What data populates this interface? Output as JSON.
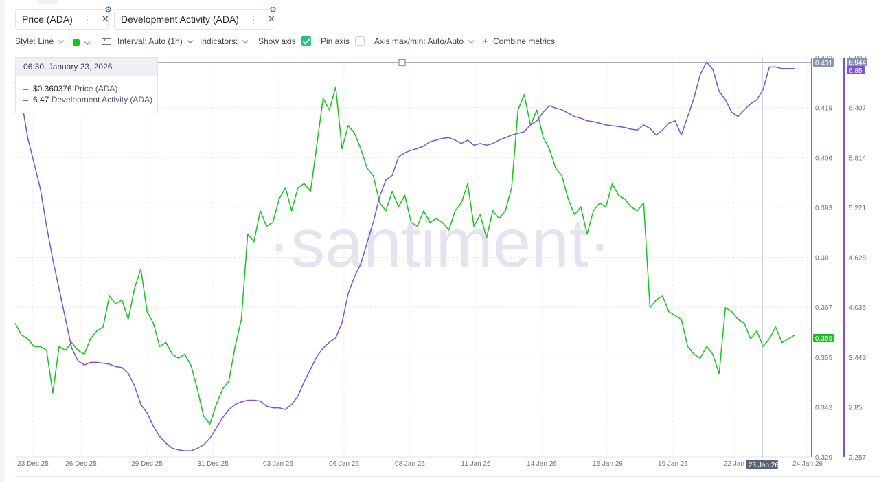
{
  "metrics": [
    {
      "label": "Price (ADA)",
      "color": "#14c31c"
    },
    {
      "label": "Development Activity (ADA)",
      "color": "#7b4fe0"
    }
  ],
  "toolbar": {
    "style": "Style: Line",
    "interval": "Interval: Auto (1h)",
    "indicators": "Indicators:",
    "show_axis": "Show axis",
    "pin_axis": "Pin axis",
    "axis_maxmin": "Axis max/min: Auto/Auto",
    "combine": "Combine metrics",
    "plus": "+"
  },
  "tooltip": {
    "date": "06:30, January 23, 2026",
    "price_value": "$0.360376",
    "price_name": "Price (ADA)",
    "dev_value": "6.47",
    "dev_name": "Development Activity (ADA)"
  },
  "watermark": "·santiment·",
  "chart_data": {
    "type": "line",
    "x_ticks": [
      "23 Dec 25",
      "26 Dec 25",
      "29 Dec 25",
      "31 Dec 25",
      "03 Jan 26",
      "06 Jan 26",
      "08 Jan 26",
      "11 Jan 26",
      "14 Jan 26",
      "16 Jan 26",
      "19 Jan 26",
      "22 Jan",
      "23 Jan 26",
      "24 Jan 26"
    ],
    "price_axis": {
      "ticks": [
        "0.432",
        "0.419",
        "0.406",
        "0.393",
        "0.38",
        "0.367",
        "0.355",
        "0.342",
        "0.329"
      ],
      "ylim": [
        0.329,
        0.432
      ]
    },
    "dev_axis": {
      "ticks": [
        "6.999",
        "6.407",
        "5.814",
        "5.221",
        "4.628",
        "4.035",
        "3.443",
        "2.85",
        "2.257"
      ],
      "ylim": [
        2.257,
        6.999
      ]
    },
    "markers": {
      "price_high": "0.431",
      "price_current": "0.359",
      "dev_high": "6.944",
      "dev_current": "6.85",
      "crosshair_date": "23 Jan 26"
    },
    "series": [
      {
        "name": "Price (ADA)",
        "color": "#14c31c",
        "points": [
          [
            0,
            0.3635
          ],
          [
            1,
            0.3605
          ],
          [
            2,
            0.3595
          ],
          [
            3,
            0.3575
          ],
          [
            4,
            0.3575
          ],
          [
            5,
            0.3565
          ],
          [
            6,
            0.3455
          ],
          [
            7,
            0.3575
          ],
          [
            8,
            0.3565
          ],
          [
            9,
            0.3585
          ],
          [
            10,
            0.3565
          ],
          [
            11,
            0.3555
          ],
          [
            12,
            0.3595
          ],
          [
            13,
            0.3615
          ],
          [
            14,
            0.3625
          ],
          [
            15,
            0.3705
          ],
          [
            16,
            0.3685
          ],
          [
            17,
            0.3695
          ],
          [
            18,
            0.3645
          ],
          [
            19,
            0.3725
          ],
          [
            20,
            0.3775
          ],
          [
            21,
            0.3665
          ],
          [
            22,
            0.3635
          ],
          [
            23,
            0.3575
          ],
          [
            24,
            0.3585
          ],
          [
            25,
            0.3555
          ],
          [
            26,
            0.3545
          ],
          [
            27,
            0.3555
          ],
          [
            28,
            0.3525
          ],
          [
            29,
            0.3465
          ],
          [
            30,
            0.3395
          ],
          [
            31,
            0.3375
          ],
          [
            32,
            0.3425
          ],
          [
            33,
            0.3465
          ],
          [
            34,
            0.3485
          ],
          [
            35,
            0.3575
          ],
          [
            36,
            0.3645
          ],
          [
            37,
            0.3865
          ],
          [
            38,
            0.3845
          ],
          [
            39,
            0.3925
          ],
          [
            40,
            0.3885
          ],
          [
            41,
            0.3895
          ],
          [
            42,
            0.3955
          ],
          [
            43,
            0.3985
          ],
          [
            44,
            0.3925
          ],
          [
            45,
            0.3985
          ],
          [
            46,
            0.3995
          ],
          [
            47,
            0.3975
          ],
          [
            48,
            0.4095
          ],
          [
            49,
            0.4215
          ],
          [
            50,
            0.4185
          ],
          [
            51,
            0.4245
          ],
          [
            52,
            0.4085
          ],
          [
            53,
            0.4145
          ],
          [
            54,
            0.4125
          ],
          [
            55,
            0.4085
          ],
          [
            56,
            0.4035
          ],
          [
            57,
            0.4015
          ],
          [
            58,
            0.3945
          ],
          [
            59,
            0.3925
          ],
          [
            60,
            0.3975
          ],
          [
            61,
            0.3935
          ],
          [
            62,
            0.3965
          ],
          [
            63,
            0.3895
          ],
          [
            64,
            0.3885
          ],
          [
            65,
            0.3925
          ],
          [
            66,
            0.3895
          ],
          [
            67,
            0.3905
          ],
          [
            68,
            0.3895
          ],
          [
            69,
            0.3875
          ],
          [
            70,
            0.3925
          ],
          [
            71,
            0.3945
          ],
          [
            72,
            0.3995
          ],
          [
            73,
            0.3885
          ],
          [
            74,
            0.3915
          ],
          [
            75,
            0.3855
          ],
          [
            76,
            0.3925
          ],
          [
            77,
            0.3905
          ],
          [
            78,
            0.3925
          ],
          [
            79,
            0.3985
          ],
          [
            80,
            0.4185
          ],
          [
            81,
            0.4225
          ],
          [
            82,
            0.4145
          ],
          [
            83,
            0.4185
          ],
          [
            84,
            0.4115
          ],
          [
            85,
            0.4085
          ],
          [
            86,
            0.4035
          ],
          [
            87,
            0.4015
          ],
          [
            88,
            0.3955
          ],
          [
            89,
            0.3915
          ],
          [
            90,
            0.3935
          ],
          [
            91,
            0.3865
          ],
          [
            92,
            0.3925
          ],
          [
            93,
            0.3945
          ],
          [
            94,
            0.3935
          ],
          [
            95,
            0.3995
          ],
          [
            96,
            0.3965
          ],
          [
            97,
            0.3955
          ],
          [
            98,
            0.3935
          ],
          [
            99,
            0.3925
          ],
          [
            100,
            0.3945
          ],
          [
            101,
            0.3675
          ],
          [
            102,
            0.3695
          ],
          [
            103,
            0.3705
          ],
          [
            104,
            0.3665
          ],
          [
            105,
            0.3655
          ],
          [
            106,
            0.3645
          ],
          [
            107,
            0.3575
          ],
          [
            108,
            0.3555
          ],
          [
            109,
            0.3545
          ],
          [
            110,
            0.3575
          ],
          [
            111,
            0.3555
          ],
          [
            112,
            0.3505
          ],
          [
            113,
            0.3675
          ],
          [
            114,
            0.3665
          ],
          [
            115,
            0.3645
          ],
          [
            116,
            0.3635
          ],
          [
            117,
            0.3595
          ],
          [
            118,
            0.3615
          ],
          [
            119,
            0.3575
          ],
          [
            120,
            0.3595
          ],
          [
            121,
            0.3625
          ],
          [
            122,
            0.3585
          ],
          [
            123,
            0.3595
          ],
          [
            124,
            0.3604
          ]
        ]
      },
      {
        "name": "Development Activity (ADA)",
        "color": "#7b4fe0",
        "points": [
          [
            0,
            6.71
          ],
          [
            1,
            6.5
          ],
          [
            2,
            6.05
          ],
          [
            3,
            5.75
          ],
          [
            4,
            5.45
          ],
          [
            5,
            5.0
          ],
          [
            6,
            4.6
          ],
          [
            7,
            4.25
          ],
          [
            8,
            3.9
          ],
          [
            9,
            3.55
          ],
          [
            10,
            3.4
          ],
          [
            11,
            3.35
          ],
          [
            12,
            3.38
          ],
          [
            13,
            3.38
          ],
          [
            14,
            3.37
          ],
          [
            15,
            3.36
          ],
          [
            16,
            3.33
          ],
          [
            17,
            3.32
          ],
          [
            18,
            3.25
          ],
          [
            19,
            3.1
          ],
          [
            20,
            2.88
          ],
          [
            21,
            2.78
          ],
          [
            22,
            2.62
          ],
          [
            23,
            2.5
          ],
          [
            24,
            2.42
          ],
          [
            25,
            2.36
          ],
          [
            26,
            2.34
          ],
          [
            27,
            2.33
          ],
          [
            28,
            2.33
          ],
          [
            29,
            2.36
          ],
          [
            30,
            2.4
          ],
          [
            31,
            2.48
          ],
          [
            32,
            2.6
          ],
          [
            33,
            2.72
          ],
          [
            34,
            2.82
          ],
          [
            35,
            2.88
          ],
          [
            36,
            2.91
          ],
          [
            37,
            2.93
          ],
          [
            38,
            2.93
          ],
          [
            39,
            2.92
          ],
          [
            40,
            2.86
          ],
          [
            41,
            2.84
          ],
          [
            42,
            2.84
          ],
          [
            43,
            2.82
          ],
          [
            44,
            2.88
          ],
          [
            45,
            2.98
          ],
          [
            46,
            3.15
          ],
          [
            47,
            3.3
          ],
          [
            48,
            3.45
          ],
          [
            49,
            3.55
          ],
          [
            50,
            3.62
          ],
          [
            51,
            3.67
          ],
          [
            52,
            3.85
          ],
          [
            53,
            4.2
          ],
          [
            54,
            4.4
          ],
          [
            55,
            4.55
          ],
          [
            56,
            4.8
          ],
          [
            57,
            5.05
          ],
          [
            58,
            5.35
          ],
          [
            59,
            5.55
          ],
          [
            60,
            5.6
          ],
          [
            61,
            5.82
          ],
          [
            62,
            5.87
          ],
          [
            63,
            5.9
          ],
          [
            64,
            5.92
          ],
          [
            65,
            5.95
          ],
          [
            66,
            6.0
          ],
          [
            67,
            6.02
          ],
          [
            68,
            6.04
          ],
          [
            69,
            6.05
          ],
          [
            70,
            6.02
          ],
          [
            71,
            5.98
          ],
          [
            72,
            6.02
          ],
          [
            73,
            5.96
          ],
          [
            74,
            5.98
          ],
          [
            75,
            5.96
          ],
          [
            76,
            5.98
          ],
          [
            77,
            6.02
          ],
          [
            78,
            6.05
          ],
          [
            79,
            6.08
          ],
          [
            80,
            6.1
          ],
          [
            81,
            6.12
          ],
          [
            82,
            6.2
          ],
          [
            83,
            6.25
          ],
          [
            84,
            6.35
          ],
          [
            85,
            6.43
          ],
          [
            86,
            6.4
          ],
          [
            87,
            6.38
          ],
          [
            88,
            6.34
          ],
          [
            89,
            6.3
          ],
          [
            90,
            6.28
          ],
          [
            91,
            6.25
          ],
          [
            92,
            6.24
          ],
          [
            93,
            6.22
          ],
          [
            94,
            6.2
          ],
          [
            95,
            6.19
          ],
          [
            96,
            6.18
          ],
          [
            97,
            6.17
          ],
          [
            98,
            6.15
          ],
          [
            99,
            6.14
          ],
          [
            100,
            6.2
          ],
          [
            101,
            6.16
          ],
          [
            102,
            6.08
          ],
          [
            103,
            6.14
          ],
          [
            104,
            6.22
          ],
          [
            105,
            6.25
          ],
          [
            106,
            6.08
          ],
          [
            107,
            6.3
          ],
          [
            108,
            6.52
          ],
          [
            109,
            6.8
          ],
          [
            110,
            6.95
          ],
          [
            111,
            6.86
          ],
          [
            112,
            6.6
          ],
          [
            113,
            6.5
          ],
          [
            114,
            6.35
          ],
          [
            115,
            6.3
          ],
          [
            116,
            6.38
          ],
          [
            117,
            6.45
          ],
          [
            118,
            6.5
          ],
          [
            119,
            6.62
          ],
          [
            120,
            6.89
          ],
          [
            121,
            6.89
          ],
          [
            122,
            6.87
          ],
          [
            123,
            6.87
          ],
          [
            124,
            6.87
          ]
        ]
      }
    ],
    "grid": true,
    "legend": "top-left tooltip"
  }
}
